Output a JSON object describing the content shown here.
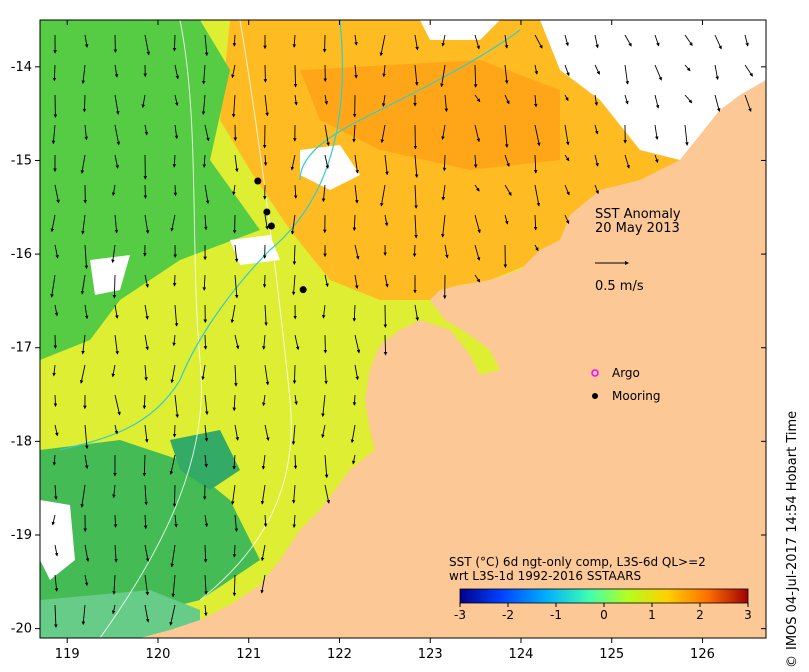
{
  "map": {
    "title": "SST Anomaly",
    "date": "20 May 2013",
    "scale_arrow_label": "0.5 m/s",
    "x_axis": {
      "ticks": [
        "119",
        "120",
        "121",
        "122",
        "123",
        "124",
        "125",
        "126"
      ],
      "values": [
        119,
        120,
        121,
        122,
        123,
        124,
        125,
        126
      ],
      "range": [
        118.7,
        126.7
      ]
    },
    "y_axis": {
      "ticks": [
        "-14",
        "-15",
        "-16",
        "-17",
        "-18",
        "-19",
        "-20"
      ],
      "values": [
        -14,
        -15,
        -16,
        -17,
        -18,
        -19,
        -20
      ],
      "range": [
        -20.1,
        -13.5
      ]
    }
  },
  "legend": {
    "argo_label": "Argo",
    "mooring_label": "Mooring",
    "argo_color": "#ff00ff",
    "mooring_color": "#000000"
  },
  "colorbar": {
    "caption_line1": "SST (°C) 6d ngt-only comp, L3S-6d QL>=2",
    "caption_line2": "wrt L3S-1d 1992-2016 SSTAARS",
    "ticks": [
      "-3",
      "-2",
      "-1",
      "0",
      "1",
      "2",
      "3"
    ],
    "values": [
      -3,
      -2,
      -1,
      0,
      1,
      2,
      3
    ],
    "colors": [
      "#00008b",
      "#0040ff",
      "#00b0ff",
      "#40ffb0",
      "#b0ff20",
      "#ffd000",
      "#ff7000",
      "#a00000"
    ]
  },
  "moorings": [
    {
      "lon": 121.1,
      "lat": -15.22
    },
    {
      "lon": 121.2,
      "lat": -15.55
    },
    {
      "lon": 121.25,
      "lat": -15.7
    },
    {
      "lon": 121.6,
      "lat": -16.38
    }
  ],
  "credit": {
    "copyright_symbol": "©",
    "text": "IMOS 04-Jul-2017 14:54 Hobart Time"
  },
  "colors": {
    "land": "#fcc896",
    "no_data": "#ffffff",
    "anomaly_low": "#33cc55",
    "anomaly_mid": "#ccee22",
    "anomaly_high": "#ffaa11"
  }
}
